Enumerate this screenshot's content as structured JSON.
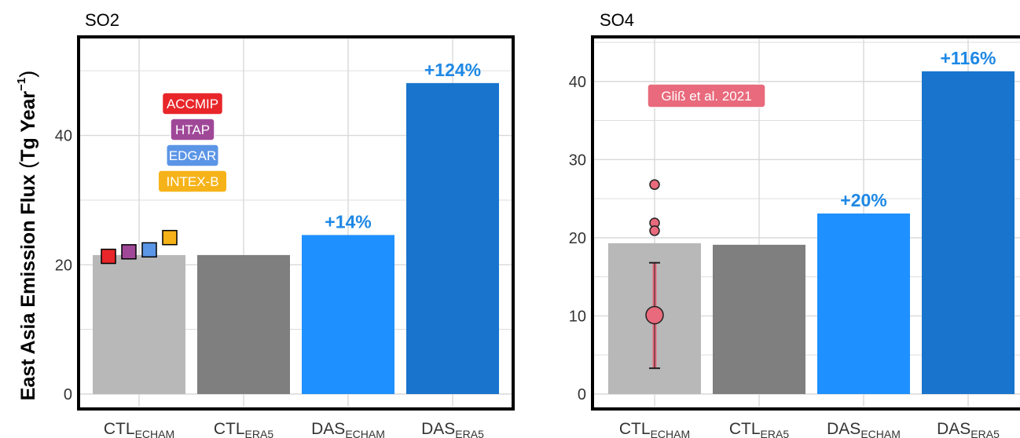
{
  "ylabel_main": "East Asia Emission Flux",
  "ylabel_unit": "Tg Year",
  "ylabel_exp": "−1",
  "colors": {
    "ctl_echam": "#b8b8b8",
    "ctl_era5": "#7f7f7f",
    "das_echam": "#1e90ff",
    "das_era5": "#1874cd",
    "pct_text": "#1e88e5",
    "grid": "#d9d9d9",
    "accmip": "#e8262a",
    "htap": "#a04898",
    "edgar": "#5b95e6",
    "intexb": "#f6b319",
    "gliss": "#e86a7c"
  },
  "chart_data": [
    {
      "type": "bar",
      "title": "SO2",
      "categories": [
        {
          "base": "CTL",
          "sub": "ECHAM"
        },
        {
          "base": "CTL",
          "sub": "ERA5"
        },
        {
          "base": "DAS",
          "sub": "ECHAM"
        },
        {
          "base": "DAS",
          "sub": "ERA5"
        }
      ],
      "values": [
        21.5,
        21.5,
        24.6,
        48.1
      ],
      "bar_labels": [
        "",
        "",
        "+14%",
        "+124%"
      ],
      "ylim": [
        0,
        55
      ],
      "yticks": [
        0,
        20,
        40
      ],
      "grid": true,
      "inventories": [
        {
          "name": "ACCMIP",
          "value": 21.3,
          "color_key": "accmip"
        },
        {
          "name": "HTAP",
          "value": 22.0,
          "color_key": "htap"
        },
        {
          "name": "EDGAR",
          "value": 22.3,
          "color_key": "edgar"
        },
        {
          "name": "INTEX-B",
          "value": 24.2,
          "color_key": "intexb"
        }
      ]
    },
    {
      "type": "bar",
      "title": "SO4",
      "categories": [
        {
          "base": "CTL",
          "sub": "ECHAM"
        },
        {
          "base": "CTL",
          "sub": "ERA5"
        },
        {
          "base": "DAS",
          "sub": "ECHAM"
        },
        {
          "base": "DAS",
          "sub": "ERA5"
        }
      ],
      "values": [
        19.3,
        19.1,
        23.1,
        41.3
      ],
      "bar_labels": [
        "",
        "",
        "+20%",
        "+116%"
      ],
      "ylim": [
        0,
        45.5
      ],
      "yticks": [
        0,
        10,
        20,
        30,
        40
      ],
      "grid": true,
      "reference": {
        "name": "Gliß et al. 2021",
        "mean": 10.1,
        "error_low": 3.3,
        "error_high": 16.8,
        "points": [
          26.8,
          21.9,
          20.9
        ]
      }
    }
  ]
}
